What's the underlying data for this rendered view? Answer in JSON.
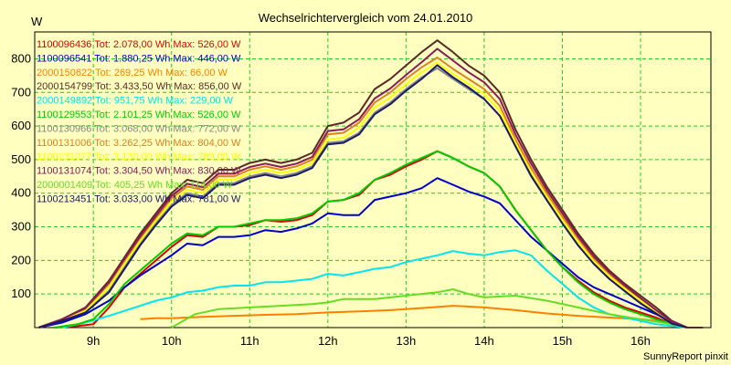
{
  "chart_data": {
    "type": "line",
    "title": "Wechselrichtervergleich vom 24.01.2010",
    "ylabel": "W",
    "xlabel": "",
    "footer": "SunnyReport pinxit",
    "ylim": [
      0,
      880
    ],
    "xlim": [
      8.25,
      16.9
    ],
    "yticks": [
      100,
      200,
      300,
      400,
      500,
      600,
      700,
      800
    ],
    "xticks": [
      9,
      10,
      11,
      12,
      13,
      14,
      15,
      16
    ],
    "xtick_labels": [
      "9h",
      "10h",
      "11h",
      "12h",
      "13h",
      "14h",
      "15h",
      "16h"
    ],
    "grid": true,
    "legend_placement": "top-left",
    "series": [
      {
        "name": "1100096436 Tot: 2.078,00 Wh Max: 526,00 W",
        "color": "#dd0000",
        "x": [
          8.5,
          8.8,
          9.0,
          9.2,
          9.4,
          9.6,
          9.8,
          10.0,
          10.2,
          10.4,
          10.6,
          10.8,
          11.0,
          11.2,
          11.4,
          11.6,
          11.8,
          12.0,
          12.2,
          12.4,
          12.6,
          12.8,
          13.0,
          13.2,
          13.4,
          13.6,
          13.8,
          14.0,
          14.2,
          14.4,
          14.6,
          14.8,
          15.0,
          15.2,
          15.4,
          15.6,
          15.8,
          16.0,
          16.2,
          16.4,
          16.6
        ],
        "y": [
          0,
          5,
          10,
          60,
          120,
          160,
          200,
          240,
          275,
          270,
          300,
          300,
          305,
          320,
          315,
          320,
          335,
          375,
          380,
          395,
          440,
          455,
          480,
          500,
          525,
          505,
          480,
          460,
          420,
          350,
          290,
          230,
          180,
          140,
          105,
          80,
          60,
          45,
          30,
          10,
          0
        ]
      },
      {
        "name": "1100096541 Tot: 1.880,25 Wh Max: 446,00 W",
        "color": "#0000cc",
        "x": [
          8.3,
          8.6,
          8.9,
          9.2,
          9.4,
          9.6,
          9.8,
          10.0,
          10.2,
          10.4,
          10.6,
          10.8,
          11.0,
          11.2,
          11.4,
          11.6,
          11.8,
          12.0,
          12.2,
          12.4,
          12.6,
          12.8,
          13.0,
          13.2,
          13.4,
          13.6,
          13.8,
          14.0,
          14.2,
          14.4,
          14.6,
          14.8,
          15.0,
          15.2,
          15.4,
          15.6,
          15.8,
          16.0,
          16.2,
          16.4,
          16.6
        ],
        "y": [
          0,
          15,
          40,
          80,
          120,
          155,
          185,
          215,
          250,
          245,
          270,
          270,
          275,
          290,
          285,
          295,
          310,
          340,
          335,
          335,
          380,
          390,
          400,
          415,
          445,
          425,
          405,
          390,
          370,
          320,
          270,
          230,
          190,
          150,
          120,
          100,
          80,
          60,
          40,
          15,
          0
        ]
      },
      {
        "name": "2000150622 Tot: 269,25 Wh Max: 66,00 W",
        "color": "#ff8000",
        "x": [
          9.6,
          9.8,
          10.0,
          10.4,
          10.8,
          11.2,
          11.6,
          12.0,
          12.4,
          12.8,
          13.2,
          13.6,
          14.0,
          14.4,
          14.8,
          15.2,
          15.6,
          16.0,
          16.4,
          16.6
        ],
        "y": [
          25,
          28,
          28,
          32,
          35,
          38,
          40,
          45,
          48,
          52,
          58,
          65,
          60,
          52,
          42,
          35,
          30,
          25,
          15,
          0
        ]
      },
      {
        "name": "2000154799 Tot: 3.433,50 Wh Max: 856,00 W",
        "color": "#5a2a28",
        "x": [
          8.3,
          8.6,
          8.9,
          9.2,
          9.4,
          9.6,
          9.8,
          10.0,
          10.2,
          10.4,
          10.6,
          10.8,
          11.0,
          11.2,
          11.4,
          11.6,
          11.8,
          12.0,
          12.2,
          12.4,
          12.6,
          12.8,
          13.0,
          13.2,
          13.4,
          13.6,
          13.8,
          14.0,
          14.2,
          14.4,
          14.6,
          14.8,
          15.0,
          15.2,
          15.4,
          15.6,
          15.8,
          16.0,
          16.2,
          16.4,
          16.6,
          16.8
        ],
        "y": [
          0,
          25,
          60,
          140,
          210,
          280,
          340,
          400,
          440,
          430,
          470,
          470,
          490,
          500,
          490,
          500,
          520,
          600,
          610,
          640,
          710,
          740,
          780,
          820,
          855,
          820,
          780,
          750,
          700,
          590,
          500,
          420,
          350,
          280,
          220,
          170,
          130,
          95,
          60,
          20,
          0,
          0
        ]
      },
      {
        "name": "2000149892 Tot: 951,75 Wh Max: 229,00 W",
        "color": "#00e5ee",
        "x": [
          8.6,
          8.9,
          9.2,
          9.4,
          9.6,
          9.8,
          10.0,
          10.2,
          10.4,
          10.6,
          10.8,
          11.0,
          11.2,
          11.4,
          11.6,
          11.8,
          12.0,
          12.2,
          12.4,
          12.6,
          12.8,
          13.0,
          13.2,
          13.4,
          13.6,
          13.8,
          14.0,
          14.2,
          14.4,
          14.6,
          14.8,
          15.0,
          15.2,
          15.4,
          15.6,
          15.8,
          16.0,
          16.2,
          16.4,
          16.6
        ],
        "y": [
          0,
          15,
          35,
          50,
          65,
          80,
          90,
          105,
          110,
          120,
          125,
          125,
          135,
          135,
          140,
          145,
          160,
          155,
          165,
          175,
          180,
          195,
          205,
          215,
          228,
          220,
          215,
          225,
          230,
          215,
          170,
          130,
          90,
          60,
          40,
          30,
          20,
          10,
          5,
          0
        ]
      },
      {
        "name": "1100129553 Tot: 2.101,25 Wh Max: 526,00 W",
        "color": "#00cc00",
        "x": [
          8.5,
          8.8,
          9.0,
          9.2,
          9.4,
          9.6,
          9.8,
          10.0,
          10.2,
          10.4,
          10.6,
          10.8,
          11.0,
          11.2,
          11.4,
          11.6,
          11.8,
          12.0,
          12.2,
          12.4,
          12.6,
          12.8,
          13.0,
          13.2,
          13.4,
          13.6,
          13.8,
          14.0,
          14.2,
          14.4,
          14.6,
          14.8,
          15.0,
          15.2,
          15.4,
          15.6,
          15.8,
          16.0,
          16.2,
          16.4,
          16.6
        ],
        "y": [
          0,
          10,
          25,
          70,
          130,
          170,
          210,
          250,
          280,
          275,
          300,
          300,
          310,
          320,
          320,
          325,
          340,
          375,
          380,
          400,
          440,
          460,
          485,
          505,
          525,
          505,
          480,
          460,
          420,
          350,
          290,
          230,
          180,
          135,
          100,
          75,
          55,
          40,
          25,
          10,
          0
        ]
      },
      {
        "name": "1100130966 Tot: 3.068,00 Wh Max: 772,00 W",
        "color": "#888888",
        "x": [
          8.3,
          8.6,
          8.9,
          9.2,
          9.4,
          9.6,
          9.8,
          10.0,
          10.2,
          10.4,
          10.6,
          10.8,
          11.0,
          11.2,
          11.4,
          11.6,
          11.8,
          12.0,
          12.2,
          12.4,
          12.6,
          12.8,
          13.0,
          13.2,
          13.4,
          13.6,
          13.8,
          14.0,
          14.2,
          14.4,
          14.6,
          14.8,
          15.0,
          15.2,
          15.4,
          15.6,
          15.8,
          16.0,
          16.2,
          16.4,
          16.6
        ],
        "y": [
          0,
          20,
          45,
          110,
          180,
          250,
          310,
          365,
          400,
          390,
          430,
          430,
          450,
          460,
          450,
          460,
          480,
          550,
          555,
          580,
          640,
          670,
          710,
          745,
          772,
          740,
          710,
          680,
          630,
          540,
          450,
          380,
          310,
          245,
          190,
          145,
          110,
          75,
          45,
          15,
          0
        ]
      },
      {
        "name": "1100131006 Tot: 3.262,25 Wh Max: 804,00 W",
        "color": "#e08020",
        "x": [
          8.3,
          8.6,
          8.9,
          9.2,
          9.4,
          9.6,
          9.8,
          10.0,
          10.2,
          10.4,
          10.6,
          10.8,
          11.0,
          11.2,
          11.4,
          11.6,
          11.8,
          12.0,
          12.2,
          12.4,
          12.6,
          12.8,
          13.0,
          13.2,
          13.4,
          13.6,
          13.8,
          14.0,
          14.2,
          14.4,
          14.6,
          14.8,
          15.0,
          15.2,
          15.4,
          15.6,
          15.8,
          16.0,
          16.2,
          16.4,
          16.6
        ],
        "y": [
          0,
          25,
          55,
          130,
          200,
          265,
          325,
          385,
          420,
          410,
          450,
          450,
          470,
          480,
          470,
          480,
          500,
          575,
          580,
          610,
          670,
          700,
          740,
          775,
          804,
          770,
          740,
          710,
          660,
          560,
          475,
          400,
          330,
          265,
          205,
          160,
          120,
          85,
          50,
          15,
          0
        ]
      },
      {
        "name": "1100131077 Tot: 3.130,00 Wh Max: 789,00 W",
        "color": "#ffff00",
        "x": [
          8.3,
          8.6,
          8.9,
          9.2,
          9.4,
          9.6,
          9.8,
          10.0,
          10.2,
          10.4,
          10.6,
          10.8,
          11.0,
          11.2,
          11.4,
          11.6,
          11.8,
          12.0,
          12.2,
          12.4,
          12.6,
          12.8,
          13.0,
          13.2,
          13.4,
          13.6,
          13.8,
          14.0,
          14.2,
          14.4,
          14.6,
          14.8,
          15.0,
          15.2,
          15.4,
          15.6,
          15.8,
          16.0,
          16.2,
          16.4,
          16.6
        ],
        "y": [
          0,
          22,
          50,
          120,
          190,
          258,
          318,
          375,
          410,
          400,
          440,
          440,
          460,
          470,
          460,
          470,
          490,
          560,
          565,
          595,
          655,
          685,
          725,
          760,
          789,
          755,
          725,
          695,
          645,
          550,
          462,
          390,
          320,
          255,
          198,
          152,
          115,
          80,
          47,
          15,
          0
        ]
      },
      {
        "name": "1100131074 Tot: 3.304,50 Wh Max: 830,00 W",
        "color": "#8b1a5a",
        "x": [
          8.3,
          8.6,
          8.9,
          9.2,
          9.4,
          9.6,
          9.8,
          10.0,
          10.2,
          10.4,
          10.6,
          10.8,
          11.0,
          11.2,
          11.4,
          11.6,
          11.8,
          12.0,
          12.2,
          12.4,
          12.6,
          12.8,
          13.0,
          13.2,
          13.4,
          13.6,
          13.8,
          14.0,
          14.2,
          14.4,
          14.6,
          14.8,
          15.0,
          15.2,
          15.4,
          15.6,
          15.8,
          16.0,
          16.2,
          16.4,
          16.6
        ],
        "y": [
          0,
          25,
          58,
          135,
          205,
          272,
          332,
          392,
          428,
          418,
          458,
          458,
          478,
          488,
          478,
          488,
          508,
          585,
          590,
          620,
          682,
          712,
          752,
          790,
          830,
          795,
          760,
          730,
          680,
          575,
          488,
          410,
          340,
          272,
          212,
          165,
          125,
          88,
          52,
          18,
          0
        ]
      },
      {
        "name": "2000001409 Tot: 405,25 Wh Max: 114,00 W",
        "color": "#66dd22",
        "x": [
          10.0,
          10.3,
          10.6,
          11.0,
          11.4,
          11.8,
          12.0,
          12.2,
          12.6,
          13.0,
          13.4,
          13.6,
          13.8,
          14.0,
          14.4,
          14.8,
          15.2,
          15.6,
          16.0,
          16.4,
          16.6
        ],
        "y": [
          0,
          40,
          55,
          60,
          65,
          70,
          75,
          85,
          85,
          95,
          105,
          114,
          100,
          90,
          95,
          80,
          60,
          40,
          25,
          10,
          0
        ]
      },
      {
        "name": "1100213451 Tot: 3.033,00 Wh Max: 781,00 W",
        "color": "#1a1a66",
        "x": [
          8.3,
          8.6,
          8.9,
          9.2,
          9.4,
          9.6,
          9.8,
          10.0,
          10.2,
          10.4,
          10.6,
          10.8,
          11.0,
          11.2,
          11.4,
          11.6,
          11.8,
          12.0,
          12.2,
          12.4,
          12.6,
          12.8,
          13.0,
          13.2,
          13.4,
          13.6,
          13.8,
          14.0,
          14.2,
          14.4,
          14.6,
          14.8,
          15.0,
          15.2,
          15.4,
          15.6,
          15.8,
          16.0,
          16.2,
          16.4,
          16.6
        ],
        "y": [
          0,
          20,
          45,
          105,
          175,
          245,
          305,
          360,
          395,
          385,
          425,
          425,
          445,
          455,
          445,
          455,
          475,
          545,
          550,
          575,
          635,
          665,
          705,
          740,
          781,
          745,
          715,
          680,
          630,
          540,
          452,
          380,
          310,
          245,
          190,
          145,
          108,
          72,
          42,
          12,
          0
        ]
      }
    ]
  }
}
